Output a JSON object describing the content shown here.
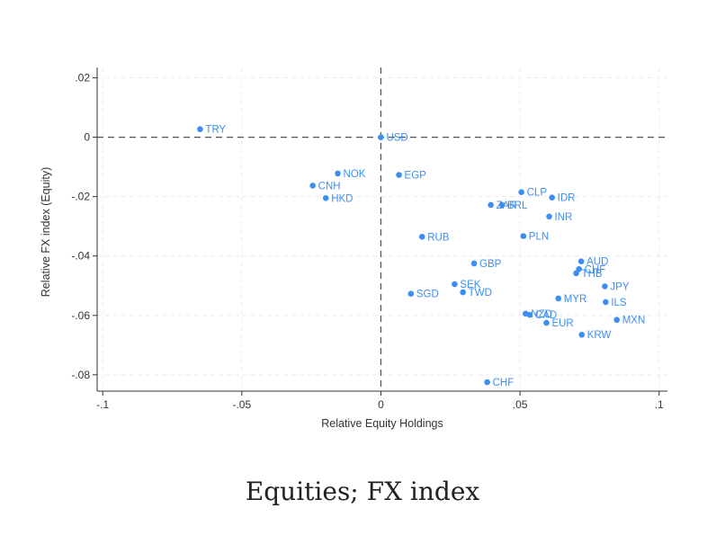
{
  "caption": "Equities; FX index",
  "chart_data": {
    "type": "scatter",
    "xlabel": "Relative Equity Holdings",
    "ylabel": "Relative FX index (Equity)",
    "xlim": [
      -0.102,
      0.103
    ],
    "ylim": [
      -0.0855,
      0.0235
    ],
    "x_ticks": [
      {
        "value": -0.1,
        "label": "-.1"
      },
      {
        "value": -0.05,
        "label": "-.05"
      },
      {
        "value": 0,
        "label": "0"
      },
      {
        "value": 0.05,
        "label": ".05"
      },
      {
        "value": 0.1,
        "label": ".1"
      }
    ],
    "y_ticks": [
      {
        "value": 0.02,
        "label": ".02"
      },
      {
        "value": 0,
        "label": "0"
      },
      {
        "value": -0.02,
        "label": "-.02"
      },
      {
        "value": -0.04,
        "label": "-.04"
      },
      {
        "value": -0.06,
        "label": "-.06"
      },
      {
        "value": -0.08,
        "label": "-.08"
      }
    ],
    "grid": true,
    "reference_lines": {
      "x": 0,
      "y": 0
    },
    "point_color": "#3d8ef2",
    "points": [
      {
        "label": "TRY",
        "x": -0.065,
        "y": 0.0027
      },
      {
        "label": "USD",
        "x": 0.0,
        "y": 0.0
      },
      {
        "label": "NOK",
        "x": -0.0155,
        "y": -0.0122
      },
      {
        "label": "EGP",
        "x": 0.0065,
        "y": -0.0127
      },
      {
        "label": "CNH",
        "x": -0.0245,
        "y": -0.0163
      },
      {
        "label": "HKD",
        "x": -0.0198,
        "y": -0.0205
      },
      {
        "label": "CLP",
        "x": 0.0505,
        "y": -0.0185
      },
      {
        "label": "IDR",
        "x": 0.0615,
        "y": -0.0203
      },
      {
        "label": "ZAR",
        "x": 0.0395,
        "y": -0.0228
      },
      {
        "label": "BRL",
        "x": 0.0435,
        "y": -0.0228
      },
      {
        "label": "INR",
        "x": 0.0605,
        "y": -0.0267
      },
      {
        "label": "RUB",
        "x": 0.0148,
        "y": -0.0335
      },
      {
        "label": "PLN",
        "x": 0.0512,
        "y": -0.0333
      },
      {
        "label": "AUD",
        "x": 0.072,
        "y": -0.0418
      },
      {
        "label": "GBP",
        "x": 0.0335,
        "y": -0.0425
      },
      {
        "label": "CHF",
        "x": 0.0712,
        "y": -0.0444
      },
      {
        "label": "THB",
        "x": 0.0702,
        "y": -0.0458
      },
      {
        "label": "SEK",
        "x": 0.0265,
        "y": -0.0495
      },
      {
        "label": "JPY",
        "x": 0.0805,
        "y": -0.0502
      },
      {
        "label": "SGD",
        "x": 0.0108,
        "y": -0.0527
      },
      {
        "label": "TWD",
        "x": 0.0295,
        "y": -0.0522
      },
      {
        "label": "MYR",
        "x": 0.0638,
        "y": -0.0543
      },
      {
        "label": "ILS",
        "x": 0.0808,
        "y": -0.0555
      },
      {
        "label": "NZD",
        "x": 0.052,
        "y": -0.0594
      },
      {
        "label": "CAD",
        "x": 0.0535,
        "y": -0.0598
      },
      {
        "label": "MXN",
        "x": 0.0848,
        "y": -0.0615
      },
      {
        "label": "EUR",
        "x": 0.0595,
        "y": -0.0625
      },
      {
        "label": "KRW",
        "x": 0.0722,
        "y": -0.0665
      },
      {
        "label": "CHF",
        "x": 0.0382,
        "y": -0.0825
      }
    ]
  }
}
